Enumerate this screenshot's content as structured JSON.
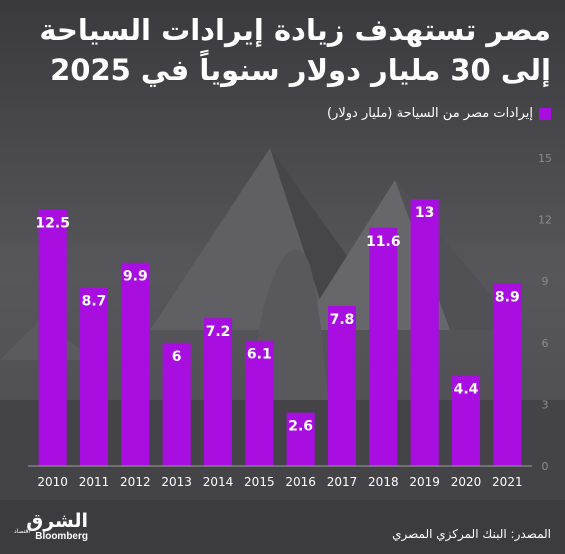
{
  "header": {
    "title_line1": "مصر تستهدف زيادة إيرادات السياحة",
    "title_line2": "إلى 30 مليار دولار سنوياً في 2025"
  },
  "legend": {
    "label": "إيرادات مصر من السياحة (مليار دولار)",
    "color": "#a90ee0"
  },
  "chart_data": {
    "type": "bar",
    "categories": [
      "2010",
      "2011",
      "2012",
      "2013",
      "2014",
      "2015",
      "2016",
      "2017",
      "2018",
      "2019",
      "2020",
      "2021"
    ],
    "values": [
      12.5,
      8.7,
      9.9,
      6,
      7.2,
      6.1,
      2.6,
      7.8,
      11.6,
      13,
      4.4,
      8.9
    ],
    "value_labels": [
      "12.5",
      "8.7",
      "9.9",
      "6",
      "7.2",
      "6.1",
      "2.6",
      "7.8",
      "11.6",
      "13",
      "4.4",
      "8.9"
    ],
    "series_name": "إيرادات مصر من السياحة (مليار دولار)",
    "yticks": [
      0,
      3,
      6,
      9,
      12,
      15
    ],
    "ylim": [
      0,
      15
    ],
    "y_axis_side": "right",
    "bar_color": "#a90ee0",
    "grid": false,
    "legend_position": "top-right"
  },
  "footer": {
    "source": "المصدر: البنك المركزي المصري"
  },
  "logo": {
    "arabic": "الشرق",
    "arabic_sub": "اقتصاد",
    "english": "Bloomberg"
  }
}
